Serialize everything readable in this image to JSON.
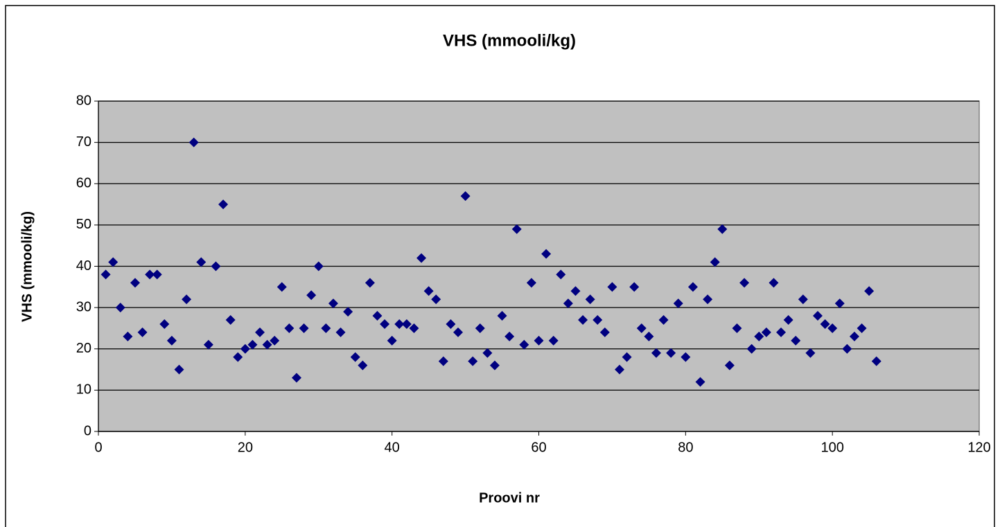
{
  "chart_data": {
    "type": "scatter",
    "title": "VHS (mmooli/kg)",
    "x_label": "Proovi nr",
    "y_label": "VHS (mmooli/kg)",
    "series": [
      {
        "color": "#000080",
        "x": [
          1,
          2,
          3,
          4,
          5,
          6,
          7,
          8,
          9,
          10,
          11,
          12,
          13,
          14,
          15,
          16,
          17,
          18,
          19,
          20,
          21,
          22,
          23,
          24,
          25,
          26,
          27,
          28,
          29,
          30,
          31,
          32,
          33,
          34,
          35,
          36,
          37,
          38,
          39,
          40,
          41,
          42,
          43,
          44,
          45,
          46,
          47,
          48,
          49,
          50,
          51,
          52,
          53,
          54,
          55,
          56,
          57,
          58,
          59,
          60,
          61,
          62,
          63,
          64,
          65,
          66,
          67,
          68,
          69,
          70,
          71,
          72,
          73,
          74,
          75,
          76,
          77,
          78,
          79,
          80,
          81,
          82,
          83,
          84,
          85,
          86,
          87,
          88,
          89,
          90,
          91,
          92,
          93,
          94,
          95,
          96,
          97,
          98,
          99,
          100,
          101,
          102,
          103,
          104,
          105,
          106
        ],
        "values": [
          38,
          41,
          30,
          23,
          36,
          24,
          38,
          38,
          26,
          22,
          15,
          32,
          70,
          41,
          21,
          40,
          55,
          27,
          18,
          20,
          21,
          24,
          21,
          22,
          35,
          25,
          13,
          25,
          33,
          40,
          25,
          31,
          24,
          29,
          18,
          16,
          36,
          28,
          26,
          22,
          26,
          26,
          25,
          42,
          34,
          32,
          17,
          26,
          24,
          57,
          17,
          25,
          19,
          16,
          28,
          23,
          49,
          21,
          36,
          22,
          43,
          22,
          38,
          31,
          34,
          27,
          32,
          27,
          24,
          35,
          15,
          18,
          35,
          25,
          23,
          19,
          27,
          19,
          31,
          18,
          35,
          12,
          32,
          41,
          49,
          16,
          25,
          36,
          20,
          23,
          24,
          36,
          24,
          27,
          22,
          32,
          19,
          28,
          26,
          25,
          31,
          20,
          23,
          25,
          34,
          17
        ]
      }
    ],
    "xlim": [
      0,
      120
    ],
    "xticks": [
      0,
      20,
      40,
      60,
      80,
      100,
      120
    ],
    "ylim": [
      0,
      80
    ],
    "yticks": [
      0,
      10,
      20,
      30,
      40,
      50,
      60,
      70,
      80
    ],
    "grid": true
  }
}
